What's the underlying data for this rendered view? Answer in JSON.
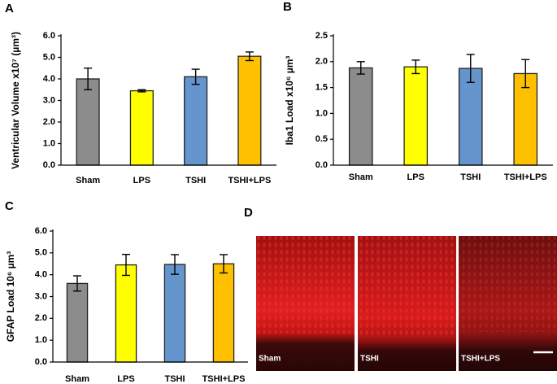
{
  "chart_data": [
    {
      "panel": "A",
      "type": "bar",
      "ylabel": "Ventricular Volume x10⁷ (µm³)",
      "categories": [
        "Sham",
        "LPS",
        "TSHI",
        "TSHI+LPS"
      ],
      "values": [
        4.0,
        3.45,
        4.1,
        5.05
      ],
      "errors": [
        0.5,
        0.05,
        0.35,
        0.2
      ],
      "colors": [
        "#8c8c8c",
        "#ffff00",
        "#6495cd",
        "#ffc000"
      ],
      "ylim": [
        0,
        6
      ],
      "yticks": [
        {
          "value": 0,
          "label": "0.0"
        },
        {
          "value": 1,
          "label": "1.0"
        },
        {
          "value": 2,
          "label": "2.0"
        },
        {
          "value": 3,
          "label": "3.0"
        },
        {
          "value": 4,
          "label": "4.0"
        },
        {
          "value": 5,
          "label": "5.0"
        },
        {
          "value": 6,
          "label": "6.0"
        }
      ]
    },
    {
      "panel": "B",
      "type": "bar",
      "ylabel": "Iba1 Load x10⁶ µm³",
      "categories": [
        "Sham",
        "LPS",
        "TSHI",
        "TSHI+LPS"
      ],
      "values": [
        1.88,
        1.9,
        1.87,
        1.77
      ],
      "errors": [
        0.12,
        0.13,
        0.27,
        0.27
      ],
      "colors": [
        "#8c8c8c",
        "#ffff00",
        "#6495cd",
        "#ffc000"
      ],
      "ylim": [
        0,
        2.5
      ],
      "yticks": [
        {
          "value": 0,
          "label": "0.0"
        },
        0.5,
        {
          "value": 1,
          "label": "1.0"
        },
        1.5,
        {
          "value": 2,
          "label": "2.0"
        },
        2.5
      ]
    },
    {
      "panel": "C",
      "type": "bar",
      "ylabel": "GFAP Load 10⁶ µm³",
      "categories": [
        "Sham",
        "LPS",
        "TSHI",
        "TSHI+LPS"
      ],
      "values": [
        3.6,
        4.45,
        4.47,
        4.5
      ],
      "errors": [
        0.35,
        0.48,
        0.45,
        0.42
      ],
      "colors": [
        "#8c8c8c",
        "#ffff00",
        "#6495cd",
        "#ffc000"
      ],
      "ylim": [
        0,
        6
      ],
      "yticks": [
        {
          "value": 0,
          "label": "0.0"
        },
        {
          "value": 1,
          "label": "1.0"
        },
        {
          "value": 2,
          "label": "2.0"
        },
        {
          "value": 3,
          "label": "3.0"
        },
        {
          "value": 4,
          "label": "4.0"
        },
        {
          "value": 5,
          "label": "5.0"
        },
        {
          "value": 6,
          "label": "6.0"
        }
      ]
    }
  ],
  "micrographs": {
    "panel": "D",
    "labels": [
      "Sham",
      "TSHI",
      "TSHI+LPS"
    ]
  }
}
